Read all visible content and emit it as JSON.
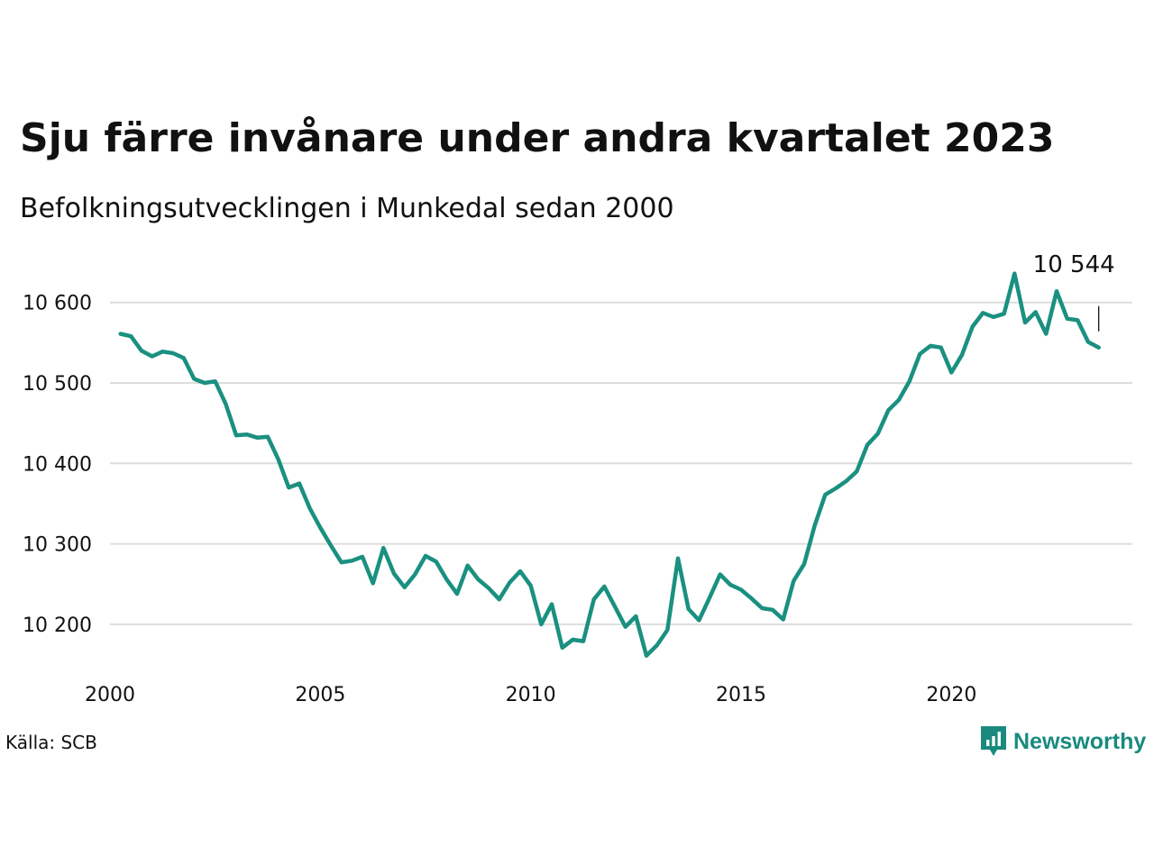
{
  "title": "Sju färre invånare under andra kvartalet 2023",
  "subtitle": "Befolkningsutvecklingen i Munkedal sedan 2000",
  "source": "Källa: SCB",
  "brand": {
    "name": "Newsworthy",
    "icon": "newsworthy-logo-icon",
    "color": "#1a8a7f"
  },
  "chart_data": {
    "type": "line",
    "title": "Sju färre invånare under andra kvartalet 2023",
    "subtitle": "Befolkningsutvecklingen i Munkedal sedan 2000",
    "line_color": "#1a9080",
    "grid": true,
    "xlim": [
      2000,
      2024.3
    ],
    "ylim": [
      10145,
      10640
    ],
    "x_ticks": [
      2000,
      2005,
      2010,
      2015,
      2020
    ],
    "x_tick_labels": [
      "2000",
      "2005",
      "2010",
      "2015",
      "2020"
    ],
    "y_ticks": [
      10200,
      10300,
      10400,
      10500,
      10600
    ],
    "y_tick_labels": [
      "10 200",
      "10 300",
      "10 400",
      "10 500",
      "10 600"
    ],
    "end_label": "10 544",
    "x": [
      2000.25,
      2000.5,
      2000.75,
      2001,
      2001.25,
      2001.5,
      2001.75,
      2002,
      2002.25,
      2002.5,
      2002.75,
      2003,
      2003.25,
      2003.5,
      2003.75,
      2004,
      2004.25,
      2004.5,
      2004.75,
      2005,
      2005.25,
      2005.5,
      2005.75,
      2006,
      2006.25,
      2006.5,
      2006.75,
      2007,
      2007.25,
      2007.5,
      2007.75,
      2008,
      2008.25,
      2008.5,
      2008.75,
      2009,
      2009.25,
      2009.5,
      2009.75,
      2010,
      2010.25,
      2010.5,
      2010.75,
      2011,
      2011.25,
      2011.5,
      2011.75,
      2012,
      2012.25,
      2012.5,
      2012.75,
      2013,
      2013.25,
      2013.5,
      2013.75,
      2014,
      2014.25,
      2014.5,
      2014.75,
      2015,
      2015.25,
      2015.5,
      2015.75,
      2016,
      2016.25,
      2016.5,
      2016.75,
      2017,
      2017.25,
      2017.5,
      2017.75,
      2018,
      2018.25,
      2018.5,
      2018.75,
      2019,
      2019.25,
      2019.5,
      2019.75,
      2020,
      2020.25,
      2020.5,
      2020.75,
      2021,
      2021.25,
      2021.5,
      2021.75,
      2022,
      2022.25,
      2022.5,
      2022.75,
      2023,
      2023.25,
      2023.5
    ],
    "series": [
      {
        "values": [
          10561,
          10558,
          10540,
          10533,
          10539,
          10537,
          10531,
          10505,
          10500,
          10502,
          10474,
          10435,
          10436,
          10432,
          10433,
          10405,
          10370,
          10375,
          10344,
          10320,
          10298,
          10277,
          10279,
          10284,
          10251,
          10295,
          10263,
          10246,
          10262,
          10285,
          10278,
          10256,
          10238,
          10273,
          10256,
          10245,
          10231,
          10252,
          10266,
          10248,
          10200,
          10225,
          10171,
          10181,
          10179,
          10231,
          10247,
          10222,
          10197,
          10210,
          10161,
          10174,
          10193,
          10282,
          10219,
          10205,
          10233,
          10262,
          10249,
          10243,
          10232,
          10220,
          10218,
          10206,
          10254,
          10275,
          10323,
          10361,
          10369,
          10378,
          10390,
          10423,
          10437,
          10466,
          10479,
          10502,
          10536,
          10546,
          10544,
          10513,
          10535,
          10570,
          10587,
          10582,
          10586,
          10636,
          10575,
          10588,
          10561,
          10614,
          10580,
          10578,
          10551,
          10544
        ]
      }
    ]
  }
}
